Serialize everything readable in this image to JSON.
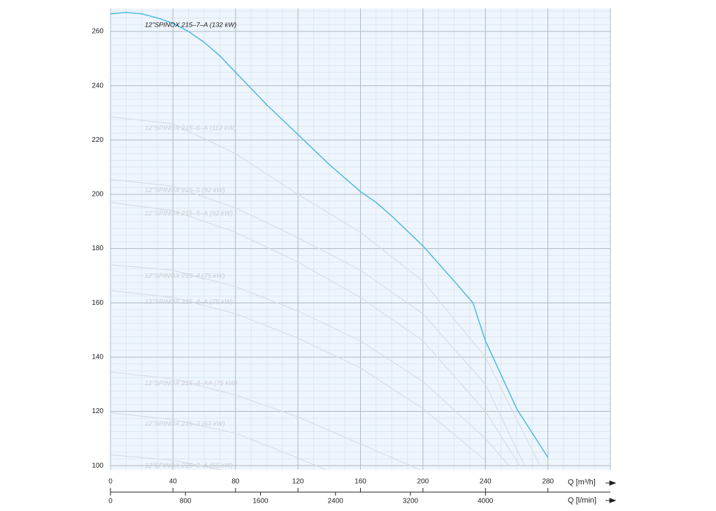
{
  "chart_data": {
    "type": "line",
    "xlabel": "Q [m³/h]",
    "x2label": "Q [l/min]",
    "xlim": [
      0,
      320
    ],
    "xticks": [
      0,
      40,
      80,
      120,
      160,
      200,
      240,
      280
    ],
    "x2lim": [
      0,
      5333.33
    ],
    "x2ticks": [
      0,
      800,
      1600,
      2400,
      3200,
      4000
    ],
    "ylim": [
      98.5,
      268.5
    ],
    "yticks": [
      100,
      120,
      140,
      160,
      180,
      200,
      220,
      240,
      260
    ],
    "grid": true,
    "minor_grid": {
      "x": 10,
      "y": 2.5
    },
    "plot_color": "#eef5fc",
    "series": [
      {
        "name": "12\"SPINOX 215–7–A (132 kW)",
        "color": "#3fb6e3",
        "label_color": "#222222",
        "x": [
          0,
          10,
          20,
          30,
          40,
          50,
          60,
          70,
          80,
          100,
          120,
          140,
          160,
          170,
          180,
          200,
          220,
          232,
          240,
          260,
          280
        ],
        "values": [
          266.5,
          267,
          266.5,
          265,
          263,
          260,
          256,
          251,
          245,
          233,
          222,
          211,
          201,
          197,
          192,
          181,
          168,
          160,
          146,
          121,
          103
        ]
      },
      {
        "name": "12\"SPINOX 215–6–A (112 kW)",
        "color": "#d8dde1",
        "label_color": "#c9ced2",
        "x": [
          0,
          40,
          80,
          120,
          160,
          200,
          240,
          275
        ],
        "values": [
          228.5,
          226,
          215,
          200,
          186,
          168,
          140,
          100
        ]
      },
      {
        "name": "12\"SPINOX 215–5 (92 kW)",
        "color": "#d8dde1",
        "label_color": "#c9ced2",
        "x": [
          0,
          40,
          80,
          120,
          160,
          200,
          240,
          265
        ],
        "values": [
          205.5,
          203,
          195,
          184,
          172,
          156,
          130,
          100
        ]
      },
      {
        "name": "12\"SPINOX 215–5–A (92 kW)",
        "color": "#d8dde1",
        "label_color": "#c9ced2",
        "x": [
          0,
          40,
          80,
          120,
          160,
          200,
          240,
          262
        ],
        "values": [
          197,
          194,
          186,
          175,
          162,
          146,
          120,
          100
        ]
      },
      {
        "name": "12\"SPINOX 215–4 (75 kW)",
        "color": "#d8dde1",
        "label_color": "#c9ced2",
        "x": [
          0,
          40,
          80,
          120,
          160,
          200,
          240,
          255
        ],
        "values": [
          174,
          172,
          166,
          157,
          146,
          131,
          110,
          100
        ]
      },
      {
        "name": "12\"SPINOX 215–4–A (75 kW)",
        "color": "#d8dde1",
        "label_color": "#c9ced2",
        "x": [
          0,
          40,
          80,
          120,
          160,
          200,
          240
        ],
        "values": [
          164.5,
          162,
          156,
          147,
          136,
          121,
          102
        ]
      },
      {
        "name": "12\"SPINOX 215–4–AA (75 kW)",
        "color": "#d8dde1",
        "label_color": "#c9ced2",
        "x": [
          0,
          40,
          80,
          120,
          160,
          200
        ],
        "values": [
          134.5,
          132,
          126,
          118,
          108,
          98
        ]
      },
      {
        "name": "12\"SPINOX 215–3 (63 kW)",
        "color": "#d8dde1",
        "label_color": "#c9ced2",
        "x": [
          0,
          40,
          80,
          115,
          140
        ],
        "values": [
          119.5,
          117,
          112,
          104,
          98
        ]
      },
      {
        "name": "12\"SPINOX 215–3–A (55 kW)",
        "color": "#d8dde1",
        "label_color": "#c9ced2",
        "x": [
          0,
          40,
          75
        ],
        "values": [
          104,
          102,
          98
        ]
      }
    ]
  }
}
